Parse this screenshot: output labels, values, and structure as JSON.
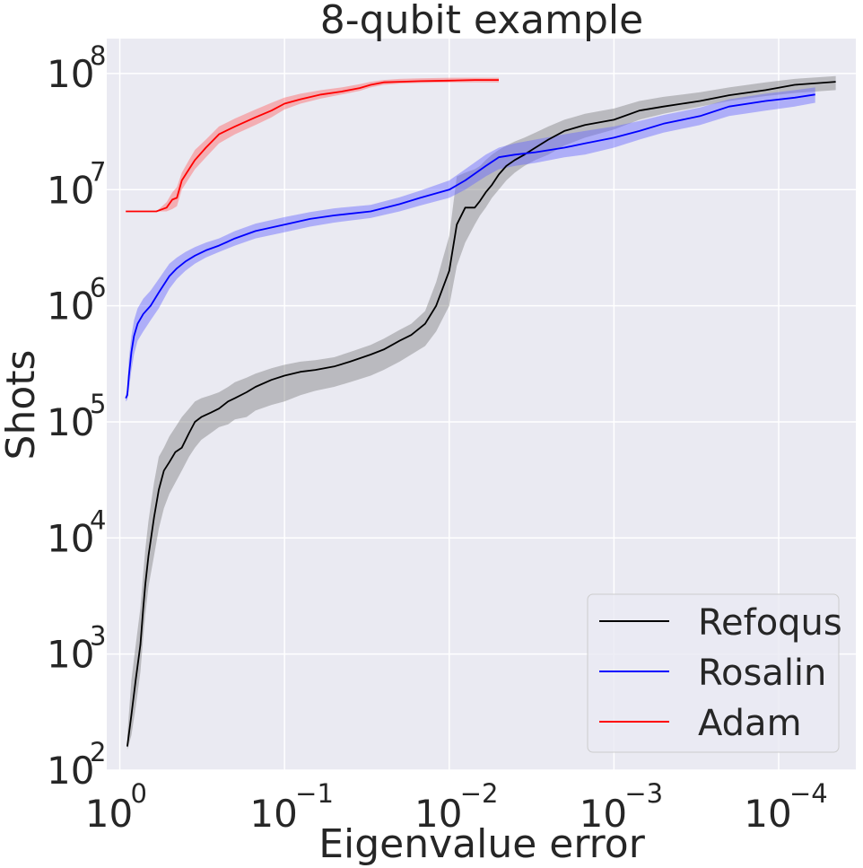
{
  "chart_data": {
    "type": "line",
    "title": "8-qubit example",
    "xlabel": "Eigenvalue error",
    "ylabel": "Shots",
    "xscale": "log-reversed",
    "yscale": "log",
    "xlim": [
      1.2,
      3.4e-05
    ],
    "ylim": [
      100,
      200000000
    ],
    "grid": true,
    "legend_position": "bottom-right",
    "x_ticks": [
      {
        "value": 1,
        "base": "10",
        "exp": "0"
      },
      {
        "value": 0.1,
        "base": "10",
        "exp": "−1"
      },
      {
        "value": 0.01,
        "base": "10",
        "exp": "−2"
      },
      {
        "value": 0.001,
        "base": "10",
        "exp": "−3"
      },
      {
        "value": 0.0001,
        "base": "10",
        "exp": "−4"
      }
    ],
    "y_ticks": [
      {
        "value": 100,
        "base": "10",
        "exp": "2"
      },
      {
        "value": 1000,
        "base": "10",
        "exp": "3"
      },
      {
        "value": 10000,
        "base": "10",
        "exp": "4"
      },
      {
        "value": 100000,
        "base": "10",
        "exp": "5"
      },
      {
        "value": 1000000,
        "base": "10",
        "exp": "6"
      },
      {
        "value": 10000000,
        "base": "10",
        "exp": "7"
      },
      {
        "value": 100000000,
        "base": "10",
        "exp": "8"
      }
    ],
    "series": [
      {
        "name": "Refoqus",
        "color": "#000000",
        "band_color": "#808080",
        "x": [
          0.9,
          0.85,
          0.8,
          0.75,
          0.72,
          0.7,
          0.67,
          0.62,
          0.58,
          0.54,
          0.5,
          0.46,
          0.42,
          0.38,
          0.35,
          0.32,
          0.28,
          0.25,
          0.22,
          0.2,
          0.17,
          0.15,
          0.12,
          0.1,
          0.08,
          0.065,
          0.05,
          0.04,
          0.03,
          0.025,
          0.02,
          0.017,
          0.014,
          0.012,
          0.01,
          0.009,
          0.008,
          0.007,
          0.0065,
          0.006,
          0.0055,
          0.005,
          0.0045,
          0.004,
          0.0035,
          0.003,
          0.0025,
          0.002,
          0.0015,
          0.001,
          0.0007,
          0.0005,
          0.0003,
          0.0002,
          0.00012,
          8e-05,
          4.5e-05
        ],
        "y": [
          160,
          300,
          600,
          1200,
          2500,
          4000,
          7000,
          15000,
          26000,
          38000,
          45000,
          55000,
          60000,
          80000,
          100000,
          110000,
          120000,
          130000,
          150000,
          160000,
          180000,
          200000,
          230000,
          250000,
          270000,
          280000,
          300000,
          330000,
          380000,
          420000,
          500000,
          560000,
          700000,
          1000000,
          2000000,
          5000000,
          7000000,
          7000000,
          8000000,
          9500000,
          11000000,
          13500000,
          16000000,
          18000000,
          20000000,
          23000000,
          27000000,
          32000000,
          36000000,
          40000000,
          48000000,
          52000000,
          58000000,
          65000000,
          72000000,
          80000000,
          85000000
        ],
        "y_lower": [
          150,
          200,
          350,
          700,
          1400,
          2200,
          3800,
          7000,
          12000,
          18000,
          24000,
          30000,
          38000,
          50000,
          60000,
          70000,
          80000,
          90000,
          95000,
          105000,
          110000,
          125000,
          140000,
          150000,
          170000,
          185000,
          200000,
          220000,
          250000,
          280000,
          330000,
          380000,
          450000,
          600000,
          1000000,
          2200000,
          3500000,
          5000000,
          6000000,
          7000000,
          8500000,
          10000000,
          12000000,
          14000000,
          16000000,
          18000000,
          20000000,
          24000000,
          28000000,
          33000000,
          40000000,
          45000000,
          52000000,
          58000000,
          64000000,
          68000000,
          72000000
        ],
        "y_upper": [
          200,
          600,
          1200,
          2500,
          5000,
          8000,
          14000,
          30000,
          50000,
          60000,
          75000,
          90000,
          110000,
          130000,
          150000,
          160000,
          170000,
          180000,
          200000,
          220000,
          240000,
          260000,
          290000,
          310000,
          330000,
          340000,
          360000,
          400000,
          460000,
          520000,
          620000,
          700000,
          900000,
          1600000,
          4000000,
          13000000,
          14000000,
          15000000,
          16000000,
          18000000,
          20000000,
          22000000,
          24000000,
          26000000,
          28000000,
          31000000,
          35000000,
          40000000,
          45000000,
          50000000,
          58000000,
          63000000,
          69000000,
          76000000,
          84000000,
          90000000,
          95000000
        ]
      },
      {
        "name": "Rosalin",
        "color": "#0000ff",
        "band_color": "#6666ff",
        "x": [
          0.92,
          0.9,
          0.88,
          0.85,
          0.82,
          0.78,
          0.72,
          0.65,
          0.58,
          0.5,
          0.45,
          0.4,
          0.35,
          0.3,
          0.25,
          0.2,
          0.15,
          0.1,
          0.07,
          0.05,
          0.03,
          0.02,
          0.015,
          0.01,
          0.008,
          0.006,
          0.005,
          0.004,
          0.003,
          0.002,
          0.0015,
          0.001,
          0.0007,
          0.0005,
          0.0003,
          0.0002,
          0.00012,
          8e-05,
          6e-05
        ],
        "y": [
          160000,
          170000,
          250000,
          400000,
          550000,
          700000,
          850000,
          1000000,
          1300000,
          1800000,
          2100000,
          2400000,
          2700000,
          3000000,
          3300000,
          3800000,
          4400000,
          5000000,
          5600000,
          6000000,
          6500000,
          7500000,
          8500000,
          10000000,
          12000000,
          16000000,
          19000000,
          20000000,
          21000000,
          23000000,
          25000000,
          28000000,
          32000000,
          37000000,
          43000000,
          52000000,
          58000000,
          62000000,
          66000000
        ],
        "y_lower": [
          150000,
          155000,
          190000,
          280000,
          380000,
          500000,
          600000,
          750000,
          950000,
          1400000,
          1700000,
          2000000,
          2300000,
          2600000,
          2900000,
          3300000,
          3800000,
          4300000,
          4800000,
          5200000,
          5700000,
          6500000,
          7300000,
          8500000,
          10000000,
          13000000,
          15000000,
          16000000,
          17000000,
          19000000,
          20000000,
          23000000,
          27000000,
          31000000,
          36000000,
          43000000,
          48000000,
          52000000,
          56000000
        ],
        "y_upper": [
          170000,
          190000,
          350000,
          550000,
          750000,
          950000,
          1150000,
          1350000,
          1700000,
          2300000,
          2600000,
          2900000,
          3200000,
          3500000,
          3800000,
          4400000,
          5100000,
          5800000,
          6400000,
          6900000,
          7400000,
          8600000,
          9800000,
          12000000,
          15000000,
          20000000,
          23000000,
          25000000,
          27000000,
          30000000,
          32000000,
          35000000,
          39000000,
          44000000,
          51000000,
          60000000,
          67000000,
          72000000,
          76000000
        ]
      },
      {
        "name": "Adam",
        "color": "#ff0000",
        "band_color": "#ff6666",
        "x": [
          0.92,
          0.8,
          0.7,
          0.6,
          0.52,
          0.48,
          0.45,
          0.42,
          0.38,
          0.35,
          0.3,
          0.25,
          0.2,
          0.15,
          0.12,
          0.1,
          0.08,
          0.06,
          0.045,
          0.035,
          0.03,
          0.025,
          0.02,
          0.015,
          0.01,
          0.007,
          0.005
        ],
        "y": [
          6500000,
          6500000,
          6500000,
          6500000,
          7000000,
          8200000,
          8500000,
          12000000,
          15000000,
          18000000,
          23000000,
          30000000,
          35000000,
          42000000,
          48000000,
          55000000,
          60000000,
          66000000,
          70000000,
          75000000,
          80000000,
          84000000,
          85000000,
          86000000,
          87000000,
          88000000,
          88000000
        ],
        "y_lower": [
          6500000,
          6500000,
          6500000,
          6500000,
          6500000,
          6800000,
          7200000,
          10000000,
          12500000,
          15000000,
          19000000,
          25000000,
          30000000,
          36000000,
          42000000,
          49000000,
          55000000,
          61000000,
          66000000,
          71000000,
          76000000,
          80000000,
          82000000,
          83000000,
          84000000,
          84000000,
          84000000
        ],
        "y_upper": [
          6500000,
          6500000,
          6500000,
          6500000,
          7800000,
          9500000,
          10500000,
          14000000,
          18000000,
          22000000,
          27000000,
          35000000,
          41000000,
          49000000,
          56000000,
          62000000,
          67000000,
          72000000,
          76000000,
          81000000,
          85000000,
          88000000,
          90000000,
          91000000,
          92000000,
          92000000,
          92000000
        ]
      }
    ]
  }
}
